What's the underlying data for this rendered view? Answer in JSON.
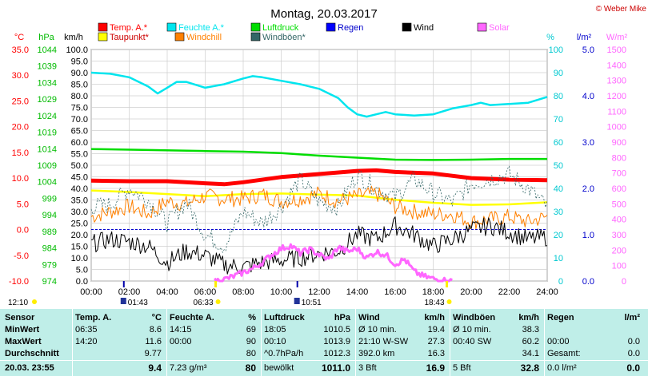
{
  "header": {
    "title": "Montag, 20.03.2017",
    "copyright": "© Weber Mike"
  },
  "legend": [
    {
      "label": "Temp. A.*",
      "color": "#ff0000"
    },
    {
      "label": "Feuchte A.*",
      "color": "#00e5ee"
    },
    {
      "label": "Luftdruck",
      "color": "#00dd00"
    },
    {
      "label": "Regen",
      "color": "#0000ff"
    },
    {
      "label": "Wind",
      "color": "#000000"
    },
    {
      "label": "Solar",
      "color": "#ff66ff"
    },
    {
      "label": "Taupunkt*",
      "color": "#ffff00"
    },
    {
      "label": "Windchill",
      "color": "#ff8000"
    },
    {
      "label": "Windböen*",
      "color": "#336666"
    }
  ],
  "sun": {
    "sunrise": "06:33",
    "sunset": "18:43",
    "moonrise": "01:43",
    "moonset": "10:51",
    "daylen_left": "12:10"
  },
  "chart_data": {
    "type": "line",
    "title": "Montag, 20.03.2017",
    "x_ticks": [
      "00:00",
      "02:00",
      "04:00",
      "06:00",
      "08:00",
      "10:00",
      "12:00",
      "14:00",
      "16:00",
      "18:00",
      "20:00",
      "22:00",
      "24:00"
    ],
    "x_range_hours": [
      0,
      24
    ],
    "axes": {
      "temp": {
        "unit": "°C",
        "ticks": [
          "35.0",
          "30.0",
          "25.0",
          "20.0",
          "15.0",
          "10.0",
          "5.0",
          "0.0",
          "-5.0",
          "-10.0"
        ],
        "range": [
          -10,
          35
        ],
        "color": "#ff0000"
      },
      "pressure": {
        "unit": "hPa",
        "ticks": [
          "1044",
          "1039",
          "1034",
          "1029",
          "1024",
          "1019",
          "1014",
          "1009",
          "1004",
          "999",
          "994",
          "989",
          "984",
          "979",
          "974"
        ],
        "range": [
          974,
          1044
        ],
        "color": "#00bb00"
      },
      "wind": {
        "unit": "km/h",
        "ticks": [
          "100.0",
          "95.0",
          "90.0",
          "85.0",
          "80.0",
          "75.0",
          "70.0",
          "65.0",
          "60.0",
          "55.0",
          "50.0",
          "45.0",
          "40.0",
          "35.0",
          "30.0",
          "25.0",
          "20.0",
          "15.0",
          "10.0",
          "5.0",
          "0.0"
        ],
        "range": [
          0,
          100
        ],
        "color": "#000000"
      },
      "humidity": {
        "unit": "%",
        "ticks": [
          "100",
          "90",
          "80",
          "70",
          "60",
          "50",
          "40",
          "30",
          "20",
          "10",
          "0"
        ],
        "range": [
          0,
          100
        ],
        "color": "#00e5ee"
      },
      "rain": {
        "unit": "l/m²",
        "ticks": [
          "5.0",
          "4.0",
          "3.0",
          "2.0",
          "1.0",
          "0.0"
        ],
        "range": [
          0,
          5
        ],
        "color": "#0000ff"
      },
      "solar": {
        "unit": "W/m²",
        "ticks": [
          "1500",
          "1400",
          "1300",
          "1200",
          "1100",
          "1000",
          "900",
          "800",
          "700",
          "600",
          "500",
          "400",
          "300",
          "200",
          "100",
          "0"
        ],
        "range": [
          0,
          1500
        ],
        "color": "#ff66ff"
      }
    },
    "series": [
      {
        "name": "Feuchte A.*",
        "axis": "humidity",
        "color": "#00e5ee",
        "points": [
          [
            0,
            90
          ],
          [
            1,
            89.5
          ],
          [
            2,
            88
          ],
          [
            3,
            84
          ],
          [
            3.5,
            81
          ],
          [
            4,
            83.5
          ],
          [
            4.5,
            86
          ],
          [
            5,
            86
          ],
          [
            6,
            83.5
          ],
          [
            7,
            85
          ],
          [
            8,
            87.5
          ],
          [
            8.5,
            88.5
          ],
          [
            9,
            88
          ],
          [
            10,
            86.5
          ],
          [
            11,
            85
          ],
          [
            12,
            83
          ],
          [
            13,
            79
          ],
          [
            13.5,
            75
          ],
          [
            14,
            72
          ],
          [
            14.5,
            71
          ],
          [
            15,
            72
          ],
          [
            15.5,
            73
          ],
          [
            16,
            72
          ],
          [
            17,
            71.5
          ],
          [
            18,
            72
          ],
          [
            19,
            74.5
          ],
          [
            20,
            76
          ],
          [
            20.5,
            77
          ],
          [
            21,
            76
          ],
          [
            22,
            76.5
          ],
          [
            23,
            77
          ],
          [
            24,
            79.5
          ]
        ]
      },
      {
        "name": "Luftdruck",
        "axis": "pressure",
        "color": "#00dd00",
        "points": [
          [
            0,
            1013.9
          ],
          [
            3,
            1013.6
          ],
          [
            6,
            1013.3
          ],
          [
            8,
            1013.1
          ],
          [
            10,
            1012.7
          ],
          [
            12,
            1011.9
          ],
          [
            14,
            1011.3
          ],
          [
            16,
            1010.7
          ],
          [
            18,
            1010.6
          ],
          [
            20,
            1010.7
          ],
          [
            22,
            1010.9
          ],
          [
            24,
            1010.9
          ]
        ]
      },
      {
        "name": "Temp. A.*",
        "axis": "temp",
        "color": "#ff0000",
        "points": [
          [
            0,
            9.5
          ],
          [
            2,
            9.4
          ],
          [
            4,
            9.4
          ],
          [
            6,
            9.0
          ],
          [
            7,
            8.8
          ],
          [
            8,
            9.2
          ],
          [
            10,
            10.2
          ],
          [
            12,
            10.8
          ],
          [
            14,
            11.4
          ],
          [
            15,
            11.5
          ],
          [
            16,
            11.2
          ],
          [
            18,
            10.9
          ],
          [
            20,
            10.0
          ],
          [
            22,
            9.7
          ],
          [
            24,
            9.6
          ]
        ]
      },
      {
        "name": "Taupunkt*",
        "axis": "temp",
        "color": "#ffff00",
        "points": [
          [
            0,
            7.6
          ],
          [
            2,
            7.3
          ],
          [
            4,
            6.9
          ],
          [
            6,
            6.5
          ],
          [
            8,
            6.9
          ],
          [
            10,
            7.0
          ],
          [
            12,
            6.8
          ],
          [
            14,
            6.6
          ],
          [
            16,
            5.8
          ],
          [
            18,
            5.2
          ],
          [
            20,
            4.8
          ],
          [
            22,
            4.9
          ],
          [
            24,
            5.3
          ]
        ]
      },
      {
        "name": "Windchill",
        "axis": "temp",
        "color": "#ff8000",
        "points": [
          [
            0,
            2.5
          ],
          [
            1,
            3.5
          ],
          [
            2,
            4.5
          ],
          [
            3,
            3.0
          ],
          [
            4,
            5.5
          ],
          [
            5,
            5.0
          ],
          [
            6,
            6.5
          ],
          [
            7,
            6.0
          ],
          [
            8,
            6.0
          ],
          [
            9,
            6.8
          ],
          [
            10,
            5.5
          ],
          [
            11,
            6.0
          ],
          [
            12,
            7.0
          ],
          [
            13,
            5.5
          ],
          [
            14,
            6.5
          ],
          [
            15,
            7.0
          ],
          [
            16,
            4.5
          ],
          [
            17,
            3.5
          ],
          [
            18,
            3.0
          ],
          [
            19,
            3.0
          ],
          [
            20,
            1.5
          ],
          [
            21,
            2.0
          ],
          [
            22,
            2.5
          ],
          [
            23,
            1.5
          ],
          [
            24,
            2.5
          ]
        ],
        "jitter": 1.6
      },
      {
        "name": "Windböen*",
        "axis": "wind",
        "color": "#336666",
        "points": [
          [
            0,
            32
          ],
          [
            1,
            33
          ],
          [
            2,
            40
          ],
          [
            3,
            35
          ],
          [
            4,
            25
          ],
          [
            5,
            34
          ],
          [
            6,
            20
          ],
          [
            7,
            15
          ],
          [
            8,
            30
          ],
          [
            9,
            25
          ],
          [
            10,
            32
          ],
          [
            11,
            44
          ],
          [
            12,
            34
          ],
          [
            13,
            32
          ],
          [
            14,
            46
          ],
          [
            15,
            40
          ],
          [
            16,
            36
          ],
          [
            17,
            44
          ],
          [
            18,
            38
          ],
          [
            19,
            34
          ],
          [
            20,
            42
          ],
          [
            21,
            44
          ],
          [
            22,
            46
          ],
          [
            23,
            40
          ],
          [
            24,
            32
          ]
        ],
        "dashed": true,
        "jitter": 4
      },
      {
        "name": "Wind",
        "axis": "wind",
        "color": "#000000",
        "points": [
          [
            0,
            16
          ],
          [
            1,
            18
          ],
          [
            2,
            17
          ],
          [
            3,
            15
          ],
          [
            4,
            8
          ],
          [
            5,
            13
          ],
          [
            6,
            11
          ],
          [
            7,
            7
          ],
          [
            8,
            6
          ],
          [
            9,
            8
          ],
          [
            10,
            9
          ],
          [
            11,
            10
          ],
          [
            12,
            12
          ],
          [
            13,
            13
          ],
          [
            14,
            20
          ],
          [
            15,
            18
          ],
          [
            16,
            24
          ],
          [
            17,
            20
          ],
          [
            18,
            15
          ],
          [
            19,
            18
          ],
          [
            20,
            22
          ],
          [
            21,
            24
          ],
          [
            22,
            21
          ],
          [
            23,
            18
          ],
          [
            24,
            19
          ]
        ],
        "jitter": 4
      },
      {
        "name": "Solar",
        "axis": "solar",
        "color": "#ff66ff",
        "points": [
          [
            6.5,
            0
          ],
          [
            7,
            10
          ],
          [
            7.5,
            30
          ],
          [
            8,
            55
          ],
          [
            8.5,
            80
          ],
          [
            9,
            120
          ],
          [
            9.5,
            170
          ],
          [
            10,
            210
          ],
          [
            10.5,
            230
          ],
          [
            11,
            180
          ],
          [
            11.5,
            205
          ],
          [
            12,
            170
          ],
          [
            12.5,
            140
          ],
          [
            13,
            220
          ],
          [
            13.5,
            190
          ],
          [
            14,
            210
          ],
          [
            14.5,
            150
          ],
          [
            15,
            190
          ],
          [
            15.5,
            170
          ],
          [
            16,
            110
          ],
          [
            16.5,
            140
          ],
          [
            17,
            60
          ],
          [
            17.5,
            30
          ],
          [
            18,
            15
          ],
          [
            18.5,
            5
          ],
          [
            19,
            0
          ]
        ],
        "jitter": 20
      }
    ],
    "reference_lines": [
      {
        "axis": "temp",
        "value": 0,
        "color": "#0000cc"
      }
    ]
  },
  "stats": {
    "columns": [
      {
        "header": "Sensor",
        "unit": ""
      },
      {
        "header": "Temp. A.",
        "unit": "°C"
      },
      {
        "header": "Feuchte A.",
        "unit": "%"
      },
      {
        "header": "Luftdruck",
        "unit": "hPa"
      },
      {
        "header": "Wind",
        "unit": "km/h"
      },
      {
        "header": "Windböen",
        "unit": "km/h"
      },
      {
        "header": "Regen",
        "unit": "l/m²"
      }
    ],
    "rows": [
      {
        "label": "MinWert",
        "cells": [
          [
            "06:35",
            "8.6"
          ],
          [
            "14:15",
            "69"
          ],
          [
            "18:05",
            "1010.5"
          ],
          [
            "Ø 10 min.",
            "19.4"
          ],
          [
            "Ø 10 min.",
            "38.3"
          ],
          [
            "",
            ""
          ]
        ]
      },
      {
        "label": "MaxWert",
        "cells": [
          [
            "14:20",
            "11.6"
          ],
          [
            "00:00",
            "90"
          ],
          [
            "00:10",
            "1013.9"
          ],
          [
            "21:10  W-SW",
            "27.3"
          ],
          [
            "00:40  SW",
            "60.2"
          ],
          [
            "00:00",
            "0.0"
          ]
        ]
      },
      {
        "label": "Durchschnitt",
        "cells": [
          [
            "",
            "9.77"
          ],
          [
            "",
            "80"
          ],
          [
            "^0.7hPa/h",
            "1012.3"
          ],
          [
            "392.0 km",
            "16.3"
          ],
          [
            "",
            "34.1"
          ],
          [
            "Gesamt:",
            "0.0"
          ]
        ]
      },
      {
        "label": "20.03. 23:55",
        "cells": [
          [
            "",
            "9.4"
          ],
          [
            "7.23 g/m³",
            "80"
          ],
          [
            "bewölkt",
            "1011.0"
          ],
          [
            "3 Bft",
            "16.9"
          ],
          [
            "5 Bft",
            "32.8"
          ],
          [
            "0.0 l/m²",
            "0.0"
          ]
        ]
      }
    ]
  }
}
